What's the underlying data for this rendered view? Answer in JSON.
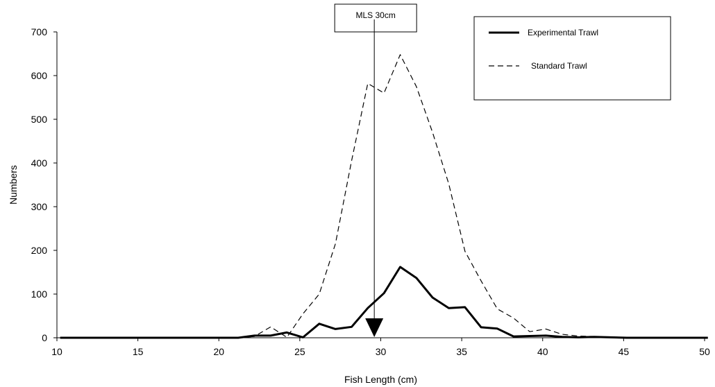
{
  "chart_data": {
    "type": "line",
    "title": "",
    "xlabel": "Fish Length (cm)",
    "ylabel": "Numbers",
    "xlim": [
      10,
      50
    ],
    "ylim": [
      0,
      700
    ],
    "xticks": [
      10,
      15,
      20,
      25,
      30,
      35,
      40,
      45,
      50
    ],
    "yticks": [
      0,
      100,
      200,
      300,
      400,
      500,
      600,
      700
    ],
    "grid": false,
    "legend_position": "top-right",
    "series": [
      {
        "name": "Experimental Trawl",
        "style": "solid",
        "color": "#000000",
        "x": [
          10.2,
          11.2,
          12.2,
          13.2,
          14.2,
          15.2,
          16.2,
          17.2,
          18.2,
          19.2,
          20.2,
          21.2,
          22.2,
          23.2,
          24.2,
          25.2,
          26.2,
          27.2,
          28.2,
          29.2,
          30.2,
          31.2,
          32.2,
          33.2,
          34.2,
          35.2,
          36.2,
          37.2,
          38.2,
          39.2,
          40.2,
          41.2,
          42.2,
          43.2,
          44.2,
          45.2,
          46.2,
          47.2,
          48.2,
          49.2,
          50.2
        ],
        "y": [
          0,
          0,
          0,
          0,
          0,
          0,
          0,
          0,
          0,
          0,
          0,
          0,
          5,
          5,
          12,
          1,
          32,
          20,
          25,
          68,
          102,
          162,
          137,
          92,
          68,
          70,
          24,
          21,
          3,
          4,
          5,
          2,
          1,
          2,
          1,
          0,
          0,
          0,
          0,
          0,
          0
        ]
      },
      {
        "name": "Standard Trawl",
        "style": "dashed",
        "color": "#000000",
        "x": [
          10.2,
          11.2,
          12.2,
          13.2,
          14.2,
          15.2,
          16.2,
          17.2,
          18.2,
          19.2,
          20.2,
          21.2,
          22.2,
          23.2,
          24.2,
          25.2,
          26.2,
          27.2,
          28.2,
          29.2,
          30.2,
          31.2,
          32.2,
          33.2,
          34.2,
          35.2,
          36.2,
          37.2,
          38.2,
          39.2,
          40.2,
          41.2,
          42.2,
          43.2,
          44.2,
          45.2,
          46.2,
          47.2,
          48.2,
          49.2,
          50.2
        ],
        "y": [
          0,
          0,
          0,
          0,
          0,
          0,
          0,
          0,
          0,
          0,
          0,
          0,
          3,
          25,
          1,
          55,
          100,
          215,
          405,
          582,
          560,
          648,
          575,
          470,
          352,
          198,
          130,
          66,
          45,
          14,
          20,
          8,
          4,
          3,
          1,
          0,
          0,
          0,
          0,
          0,
          0
        ]
      }
    ],
    "annotations": [
      {
        "label": "MLS 30cm",
        "x": 29.6
      }
    ]
  }
}
